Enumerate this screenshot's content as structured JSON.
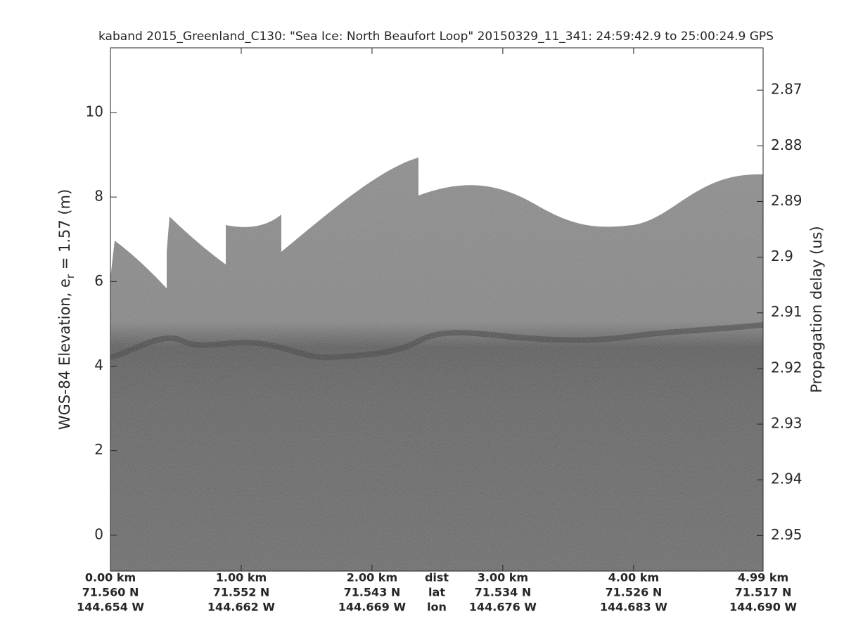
{
  "chart_data": {
    "type": "echogram",
    "title": "kaband 2015_Greenland_C130: \"Sea Ice: North Beaufort Loop\"  20150329_11_341: 24:59:42.9 to 25:00:24.9 GPS",
    "ylabel": {
      "text": "WGS-84 Elevation, e",
      "subscript": "r",
      "rest": " = 1.57 (m)"
    },
    "y2label": "Propagation delay (us)",
    "xlim": [
      0,
      4.99
    ],
    "xticks": [
      {
        "value": 0,
        "label": "0.00 km"
      },
      {
        "value": 1,
        "label": "1.00 km"
      },
      {
        "value": 2,
        "label": "2.00 km"
      },
      {
        "value": 3,
        "label": "3.00 km"
      },
      {
        "value": 4,
        "label": "4.00 km"
      },
      {
        "value": 4.99,
        "label": "4.99 km"
      }
    ],
    "xtick_lat": [
      "71.560 N",
      "71.552 N",
      "71.543 N",
      "71.534 N",
      "71.526 N",
      "71.517 N"
    ],
    "xtick_lon": [
      "144.654 W",
      "144.662 W",
      "144.669 W",
      "144.676 W",
      "144.683 W",
      "144.690 W"
    ],
    "xtick_row_labels": [
      "dist",
      "lat",
      "lon"
    ],
    "ylim": [
      -0.85,
      11.53
    ],
    "yticks": [
      0,
      2,
      4,
      6,
      8,
      10
    ],
    "y2lim": [
      2.9564,
      2.8624
    ],
    "y2ticks": [
      2.87,
      2.88,
      2.89,
      2.9,
      2.91,
      2.92,
      2.93,
      2.94,
      2.95
    ]
  }
}
